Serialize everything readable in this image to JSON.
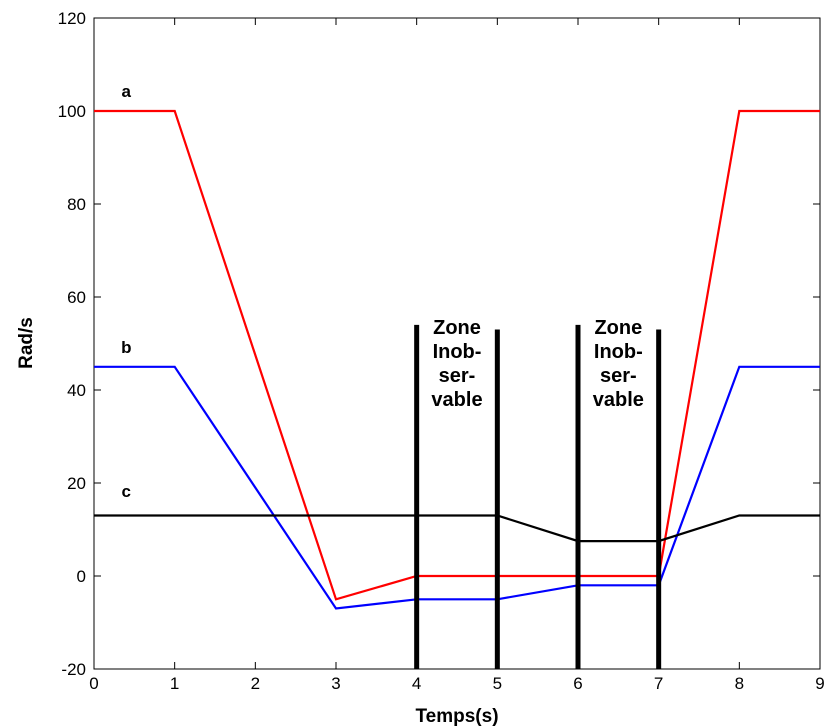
{
  "chart_data": {
    "type": "line",
    "title": "",
    "xlabel": "Temps(s)",
    "ylabel": "Rad/s",
    "xlim": [
      0,
      9
    ],
    "ylim": [
      -20,
      120
    ],
    "xticks": [
      0,
      1,
      2,
      3,
      4,
      5,
      6,
      7,
      8,
      9
    ],
    "yticks": [
      -20,
      0,
      20,
      40,
      60,
      80,
      100,
      120
    ],
    "grid": false,
    "series": [
      {
        "name": "a",
        "color": "#ff0000",
        "x": [
          0,
          1,
          3,
          4,
          5,
          6,
          7,
          8,
          9
        ],
        "y": [
          100,
          100,
          -5,
          0,
          0,
          0,
          0,
          100,
          100
        ]
      },
      {
        "name": "b",
        "color": "#0000ff",
        "x": [
          0,
          1,
          3,
          4,
          5,
          6,
          7,
          8,
          9
        ],
        "y": [
          45,
          45,
          -7,
          -5,
          -5,
          -2,
          -2,
          45,
          45
        ]
      },
      {
        "name": "c",
        "color": "#000000",
        "x": [
          0,
          1,
          2,
          3,
          4,
          5,
          6,
          7,
          8,
          9
        ],
        "y": [
          13,
          13,
          13,
          13,
          13,
          13,
          7.5,
          7.5,
          13,
          13
        ]
      }
    ],
    "series_label_positions": [
      {
        "series": "a",
        "x": 0.4,
        "y": 103
      },
      {
        "series": "b",
        "x": 0.4,
        "y": 48
      },
      {
        "series": "c",
        "x": 0.4,
        "y": 17
      }
    ],
    "vertical_lines": [
      {
        "x": 4,
        "y_top": 54,
        "y_bottom": -20
      },
      {
        "x": 5,
        "y_top": 53,
        "y_bottom": -20
      },
      {
        "x": 6,
        "y_top": 54,
        "y_bottom": -20
      },
      {
        "x": 7,
        "y_top": 53,
        "y_bottom": -20
      }
    ],
    "annotations": [
      {
        "x": 4.5,
        "y": 52,
        "lines": [
          "Zone",
          "Inob-",
          "ser-",
          "vable"
        ]
      },
      {
        "x": 6.5,
        "y": 52,
        "lines": [
          "Zone",
          "Inob-",
          "ser-",
          "vable"
        ]
      }
    ]
  }
}
